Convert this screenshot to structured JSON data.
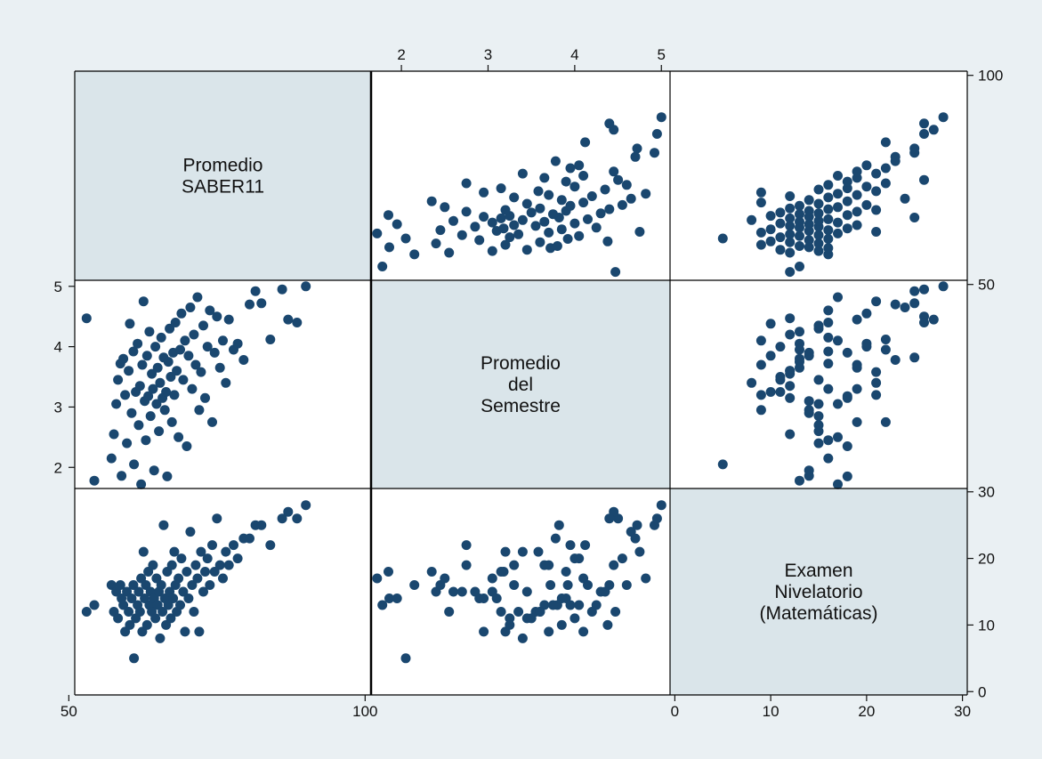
{
  "chart_data": {
    "type": "scatter",
    "subtype": "scatter-matrix",
    "colors": {
      "background": "#eaf0f3",
      "plot_bg": "#ffffff",
      "diagonal_bg": "#dae5ea",
      "marker": "#1a476f",
      "frame": "#000000"
    },
    "variables": [
      {
        "key": "saber",
        "label_lines": [
          "Promedio",
          "SABER11"
        ],
        "range": [
          51,
          101
        ],
        "ticks": [
          50,
          100
        ],
        "tick_labels": [
          "50",
          "100"
        ]
      },
      {
        "key": "sem",
        "label_lines": [
          "Promedio",
          "del",
          "Semestre"
        ],
        "range": [
          1.65,
          5.1
        ],
        "ticks": [
          2,
          3,
          4,
          5
        ],
        "tick_labels": [
          "2",
          "3",
          "4",
          "5"
        ]
      },
      {
        "key": "exam",
        "label_lines": [
          "Examen",
          "Nivelatorio",
          "(Matemáticas)"
        ],
        "range": [
          -0.5,
          30.5
        ],
        "ticks": [
          0,
          10,
          20,
          30
        ],
        "tick_labels": [
          "0",
          "10",
          "20",
          "30"
        ]
      }
    ],
    "tick_placement": {
      "saber": [
        "bottom",
        "right"
      ],
      "sem": [
        "top",
        "left"
      ],
      "exam": [
        "bottom",
        "right"
      ]
    },
    "points": [
      {
        "saber": 53.0,
        "sem": 4.47,
        "exam": 12
      },
      {
        "saber": 54.3,
        "sem": 1.78,
        "exam": 13
      },
      {
        "saber": 57.2,
        "sem": 2.15,
        "exam": 16
      },
      {
        "saber": 57.6,
        "sem": 2.55,
        "exam": 12
      },
      {
        "saber": 58.0,
        "sem": 3.05,
        "exam": 15
      },
      {
        "saber": 58.3,
        "sem": 3.45,
        "exam": 11
      },
      {
        "saber": 58.7,
        "sem": 3.72,
        "exam": 16
      },
      {
        "saber": 58.9,
        "sem": 1.86,
        "exam": 14
      },
      {
        "saber": 59.2,
        "sem": 3.8,
        "exam": 13
      },
      {
        "saber": 59.5,
        "sem": 3.2,
        "exam": 9
      },
      {
        "saber": 59.8,
        "sem": 2.4,
        "exam": 15
      },
      {
        "saber": 60.1,
        "sem": 3.6,
        "exam": 12
      },
      {
        "saber": 60.3,
        "sem": 4.38,
        "exam": 10
      },
      {
        "saber": 60.6,
        "sem": 2.9,
        "exam": 14
      },
      {
        "saber": 60.9,
        "sem": 3.92,
        "exam": 16
      },
      {
        "saber": 61.0,
        "sem": 2.05,
        "exam": 5
      },
      {
        "saber": 61.3,
        "sem": 3.25,
        "exam": 11
      },
      {
        "saber": 61.6,
        "sem": 4.05,
        "exam": 13
      },
      {
        "saber": 61.8,
        "sem": 2.7,
        "exam": 15
      },
      {
        "saber": 62.0,
        "sem": 3.35,
        "exam": 12
      },
      {
        "saber": 62.2,
        "sem": 1.72,
        "exam": 17
      },
      {
        "saber": 62.4,
        "sem": 3.7,
        "exam": 9
      },
      {
        "saber": 62.6,
        "sem": 4.75,
        "exam": 21
      },
      {
        "saber": 62.8,
        "sem": 3.1,
        "exam": 14
      },
      {
        "saber": 63.0,
        "sem": 2.45,
        "exam": 16
      },
      {
        "saber": 63.2,
        "sem": 3.85,
        "exam": 10
      },
      {
        "saber": 63.4,
        "sem": 3.18,
        "exam": 18
      },
      {
        "saber": 63.6,
        "sem": 4.25,
        "exam": 13
      },
      {
        "saber": 63.8,
        "sem": 2.85,
        "exam": 15
      },
      {
        "saber": 64.0,
        "sem": 3.55,
        "exam": 12
      },
      {
        "saber": 64.2,
        "sem": 3.3,
        "exam": 19
      },
      {
        "saber": 64.4,
        "sem": 1.95,
        "exam": 14
      },
      {
        "saber": 64.6,
        "sem": 4.0,
        "exam": 11
      },
      {
        "saber": 64.8,
        "sem": 3.05,
        "exam": 17
      },
      {
        "saber": 65.0,
        "sem": 3.65,
        "exam": 13
      },
      {
        "saber": 65.2,
        "sem": 2.6,
        "exam": 15
      },
      {
        "saber": 65.4,
        "sem": 3.4,
        "exam": 8
      },
      {
        "saber": 65.6,
        "sem": 4.15,
        "exam": 16
      },
      {
        "saber": 65.8,
        "sem": 3.15,
        "exam": 12
      },
      {
        "saber": 66.0,
        "sem": 3.82,
        "exam": 25
      },
      {
        "saber": 66.2,
        "sem": 2.95,
        "exam": 14
      },
      {
        "saber": 66.4,
        "sem": 3.25,
        "exam": 10
      },
      {
        "saber": 66.6,
        "sem": 1.85,
        "exam": 18
      },
      {
        "saber": 66.8,
        "sem": 3.75,
        "exam": 13
      },
      {
        "saber": 67.0,
        "sem": 4.3,
        "exam": 15
      },
      {
        "saber": 67.2,
        "sem": 3.5,
        "exam": 11
      },
      {
        "saber": 67.4,
        "sem": 2.75,
        "exam": 19
      },
      {
        "saber": 67.6,
        "sem": 3.9,
        "exam": 14
      },
      {
        "saber": 67.8,
        "sem": 3.2,
        "exam": 21
      },
      {
        "saber": 68.0,
        "sem": 4.4,
        "exam": 16
      },
      {
        "saber": 68.2,
        "sem": 3.6,
        "exam": 12
      },
      {
        "saber": 68.5,
        "sem": 2.5,
        "exam": 17
      },
      {
        "saber": 68.8,
        "sem": 3.95,
        "exam": 13
      },
      {
        "saber": 69.0,
        "sem": 4.55,
        "exam": 20
      },
      {
        "saber": 69.3,
        "sem": 3.45,
        "exam": 15
      },
      {
        "saber": 69.6,
        "sem": 4.1,
        "exam": 9
      },
      {
        "saber": 69.9,
        "sem": 2.35,
        "exam": 18
      },
      {
        "saber": 70.2,
        "sem": 3.85,
        "exam": 14
      },
      {
        "saber": 70.5,
        "sem": 4.65,
        "exam": 24
      },
      {
        "saber": 70.8,
        "sem": 3.3,
        "exam": 16
      },
      {
        "saber": 71.1,
        "sem": 4.2,
        "exam": 12
      },
      {
        "saber": 71.4,
        "sem": 3.7,
        "exam": 19
      },
      {
        "saber": 71.7,
        "sem": 4.82,
        "exam": 17
      },
      {
        "saber": 72.0,
        "sem": 2.95,
        "exam": 9
      },
      {
        "saber": 72.3,
        "sem": 3.58,
        "exam": 21
      },
      {
        "saber": 72.7,
        "sem": 4.35,
        "exam": 15
      },
      {
        "saber": 73.0,
        "sem": 3.15,
        "exam": 18
      },
      {
        "saber": 73.4,
        "sem": 4.0,
        "exam": 20
      },
      {
        "saber": 73.8,
        "sem": 4.6,
        "exam": 16
      },
      {
        "saber": 74.2,
        "sem": 2.75,
        "exam": 22
      },
      {
        "saber": 74.6,
        "sem": 3.9,
        "exam": 18
      },
      {
        "saber": 75.0,
        "sem": 4.5,
        "exam": 26
      },
      {
        "saber": 75.5,
        "sem": 3.65,
        "exam": 19
      },
      {
        "saber": 76.0,
        "sem": 4.1,
        "exam": 17
      },
      {
        "saber": 76.5,
        "sem": 3.4,
        "exam": 21
      },
      {
        "saber": 77.0,
        "sem": 4.45,
        "exam": 19
      },
      {
        "saber": 77.8,
        "sem": 3.95,
        "exam": 22
      },
      {
        "saber": 78.5,
        "sem": 4.05,
        "exam": 20
      },
      {
        "saber": 79.5,
        "sem": 3.78,
        "exam": 23
      },
      {
        "saber": 80.5,
        "sem": 4.7,
        "exam": 23
      },
      {
        "saber": 81.5,
        "sem": 4.92,
        "exam": 25
      },
      {
        "saber": 82.5,
        "sem": 4.72,
        "exam": 25
      },
      {
        "saber": 84.0,
        "sem": 4.12,
        "exam": 22
      },
      {
        "saber": 86.0,
        "sem": 4.95,
        "exam": 26
      },
      {
        "saber": 87.0,
        "sem": 4.45,
        "exam": 27
      },
      {
        "saber": 88.5,
        "sem": 4.4,
        "exam": 26
      },
      {
        "saber": 90.0,
        "sem": 5.0,
        "exam": 28
      }
    ]
  }
}
